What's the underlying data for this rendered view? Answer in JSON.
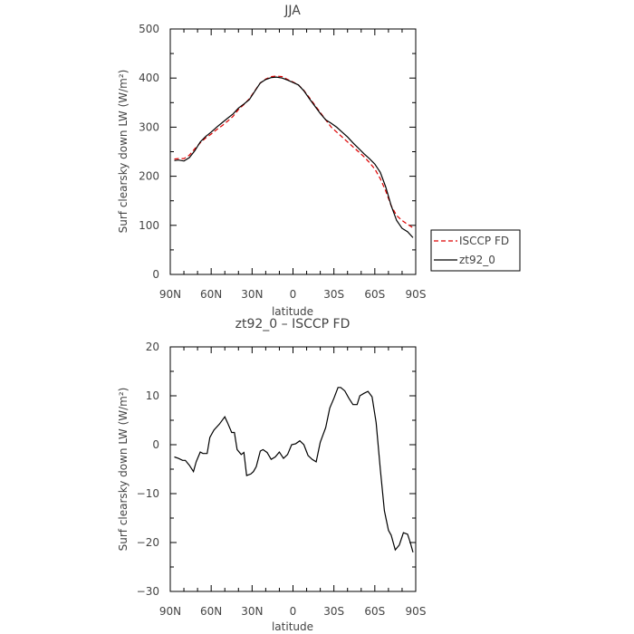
{
  "chart_data": [
    {
      "type": "line",
      "title": "JJA",
      "xlabel": "latitude",
      "ylabel": "Surf clearsky down LW (W/m²)",
      "xlim": [
        90,
        -90
      ],
      "ylim": [
        0,
        500
      ],
      "x_ticks": [
        {
          "value": 90,
          "label": "90N"
        },
        {
          "value": 60,
          "label": "60N"
        },
        {
          "value": 30,
          "label": "30N"
        },
        {
          "value": 0,
          "label": "0"
        },
        {
          "value": -30,
          "label": "30S"
        },
        {
          "value": -60,
          "label": "60S"
        },
        {
          "value": -90,
          "label": "90S"
        }
      ],
      "y_ticks": [
        {
          "value": 0,
          "label": "0"
        },
        {
          "value": 100,
          "label": "100"
        },
        {
          "value": 200,
          "label": "200"
        },
        {
          "value": 300,
          "label": "300"
        },
        {
          "value": 400,
          "label": "400"
        },
        {
          "value": 500,
          "label": "500"
        }
      ],
      "legend_position": "outside-right",
      "series": [
        {
          "name": "ISCCP FD",
          "color": "#dd0000",
          "dash": "dashed",
          "x": [
            87,
            84,
            80,
            76,
            72,
            68,
            64,
            60,
            56,
            52,
            48,
            44,
            40,
            36,
            32,
            28,
            24,
            20,
            16,
            12,
            8,
            4,
            0,
            -4,
            -8,
            -12,
            -16,
            -20,
            -24,
            -28,
            -32,
            -36,
            -40,
            -44,
            -48,
            -52,
            -56,
            -60,
            -64,
            -68,
            -72,
            -76,
            -80,
            -84,
            -88
          ],
          "y": [
            235,
            236,
            236,
            243,
            256,
            268,
            278,
            286,
            295,
            303,
            312,
            322,
            336,
            346,
            358,
            374,
            390,
            398,
            403,
            404,
            403,
            397,
            392,
            386,
            375,
            360,
            345,
            330,
            315,
            300,
            290,
            280,
            270,
            260,
            250,
            240,
            228,
            215,
            195,
            170,
            140,
            120,
            110,
            102,
            95
          ]
        },
        {
          "name": "zt92_0",
          "color": "#000000",
          "dash": "solid",
          "x": [
            87,
            84,
            80,
            76,
            72,
            68,
            64,
            60,
            56,
            52,
            48,
            44,
            40,
            36,
            32,
            28,
            24,
            20,
            16,
            12,
            8,
            4,
            0,
            -4,
            -8,
            -12,
            -16,
            -20,
            -24,
            -28,
            -32,
            -36,
            -40,
            -44,
            -48,
            -52,
            -56,
            -60,
            -64,
            -68,
            -72,
            -76,
            -80,
            -84,
            -88
          ],
          "y": [
            232,
            233,
            231,
            238,
            252,
            270,
            281,
            290,
            300,
            309,
            318,
            327,
            339,
            347,
            356,
            373,
            390,
            397,
            401,
            402,
            400,
            396,
            391,
            386,
            374,
            358,
            343,
            328,
            315,
            308,
            300,
            290,
            280,
            268,
            257,
            246,
            236,
            225,
            208,
            178,
            140,
            110,
            94,
            87,
            75
          ]
        }
      ]
    },
    {
      "type": "line",
      "title": "zt92_0 – ISCCP FD",
      "xlabel": "latitude",
      "ylabel": "Surf clearsky down LW (W/m²)",
      "xlim": [
        90,
        -90
      ],
      "ylim": [
        -30,
        20
      ],
      "x_ticks": [
        {
          "value": 90,
          "label": "90N"
        },
        {
          "value": 60,
          "label": "60N"
        },
        {
          "value": 30,
          "label": "30N"
        },
        {
          "value": 0,
          "label": "0"
        },
        {
          "value": -30,
          "label": "30S"
        },
        {
          "value": -60,
          "label": "60S"
        },
        {
          "value": -90,
          "label": "90S"
        }
      ],
      "y_ticks": [
        {
          "value": -30,
          "label": "−30"
        },
        {
          "value": -20,
          "label": "−20"
        },
        {
          "value": -10,
          "label": "−10"
        },
        {
          "value": 0,
          "label": "0"
        },
        {
          "value": 10,
          "label": "10"
        },
        {
          "value": 20,
          "label": "20"
        }
      ],
      "series": [
        {
          "color": "#000000",
          "dash": "solid",
          "x": [
            87,
            84,
            81,
            79,
            76,
            73,
            71,
            68,
            66,
            63,
            61,
            58,
            54,
            50,
            48,
            45,
            43,
            41,
            38,
            36,
            34,
            31,
            29,
            27,
            24,
            22,
            19,
            16,
            13,
            10,
            7,
            4,
            1,
            -2,
            -5,
            -8,
            -11,
            -14,
            -17,
            -20,
            -24,
            -27,
            -30,
            -33,
            -35,
            -38,
            -41,
            -44,
            -47,
            -49,
            -52,
            -55,
            -58,
            -61,
            -64,
            -67,
            -70,
            -72,
            -75,
            -78,
            -81,
            -84,
            -86,
            -88
          ],
          "y": [
            -2.5,
            -2.8,
            -3.2,
            -3.2,
            -4.2,
            -5.5,
            -3.5,
            -1.5,
            -1.8,
            -1.8,
            1.5,
            3.0,
            4.2,
            5.7,
            4.5,
            2.5,
            2.5,
            -1.0,
            -2.0,
            -1.6,
            -6.3,
            -6.0,
            -5.5,
            -4.5,
            -1.3,
            -1.0,
            -1.6,
            -3.0,
            -2.5,
            -1.5,
            -2.8,
            -2.0,
            0.0,
            0.2,
            0.8,
            0.0,
            -2.2,
            -3.0,
            -3.5,
            0.5,
            3.5,
            7.5,
            9.5,
            11.7,
            11.7,
            11.0,
            9.5,
            8.2,
            8.2,
            10.0,
            10.5,
            10.9,
            9.8,
            4.5,
            -5.0,
            -13.5,
            -17.5,
            -18.5,
            -21.5,
            -20.5,
            -18.0,
            -18.3,
            -20.0,
            -22.0
          ]
        }
      ]
    }
  ]
}
